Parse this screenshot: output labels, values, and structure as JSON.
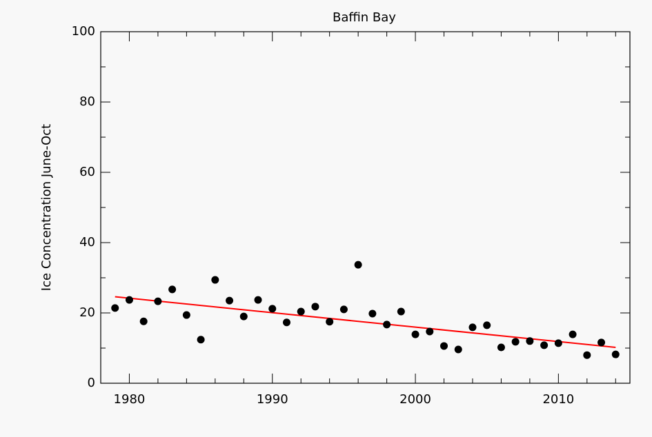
{
  "chart_data": {
    "type": "scatter",
    "title": "Baffin Bay",
    "ylabel": "Ice Concentration June-Oct",
    "points": {
      "color": "#000000",
      "x": [
        1979,
        1980,
        1981,
        1982,
        1983,
        1984,
        1985,
        1986,
        1987,
        1988,
        1989,
        1990,
        1991,
        1992,
        1993,
        1994,
        1995,
        1996,
        1997,
        1998,
        1999,
        2000,
        2001,
        2002,
        2003,
        2004,
        2005,
        2006,
        2007,
        2008,
        2009,
        2010,
        2011,
        2012,
        2013,
        2014
      ],
      "values": [
        21.4,
        23.7,
        17.6,
        23.3,
        26.7,
        19.4,
        12.4,
        29.4,
        23.5,
        19.0,
        23.7,
        21.2,
        17.3,
        20.4,
        21.8,
        17.5,
        21.0,
        33.7,
        19.8,
        16.7,
        20.4,
        13.9,
        14.7,
        10.6,
        9.6,
        15.9,
        16.5,
        10.2,
        11.8,
        12.0,
        10.8,
        11.4,
        13.9,
        8.0,
        11.6,
        8.2
      ]
    },
    "trend": {
      "color": "#ff0000",
      "x": [
        1979,
        2014
      ],
      "values": [
        24.6,
        10.2
      ]
    },
    "xlim": [
      1978,
      2015
    ],
    "xticks": [
      1980,
      1990,
      2000,
      2010
    ],
    "xminorticks": [
      1978,
      1982,
      1984,
      1986,
      1988,
      1992,
      1994,
      1996,
      1998,
      2002,
      2004,
      2006,
      2008,
      2012,
      2014
    ],
    "ylim": [
      0,
      100
    ],
    "yticks": [
      0,
      20,
      40,
      60,
      80,
      100
    ],
    "yminorticks": [
      10,
      30,
      50,
      70,
      90
    ]
  }
}
